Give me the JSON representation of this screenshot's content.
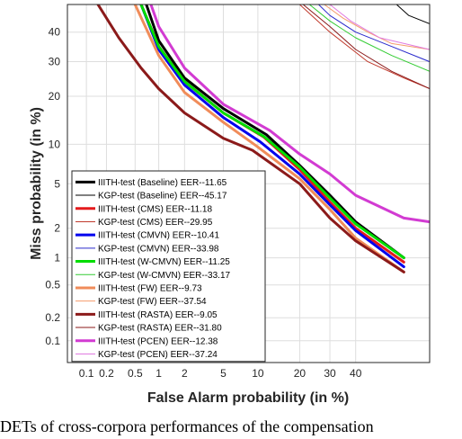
{
  "chart_data": {
    "type": "line",
    "xlabel": "False Alarm probability (in %)",
    "ylabel": "Miss probability (in %)",
    "xscale": "probit",
    "yscale": "probit",
    "xlim": [
      0.05,
      70
    ],
    "ylim": [
      0.05,
      50
    ],
    "xticks": [
      0.1,
      0.2,
      0.5,
      1,
      2,
      5,
      10,
      20,
      30,
      40
    ],
    "xtick_labels": [
      "0.1",
      "0.2",
      "0.5",
      "1",
      "2",
      "5",
      "10",
      "20",
      "30",
      "40"
    ],
    "yticks": [
      0.1,
      0.2,
      0.5,
      1,
      2,
      5,
      10,
      20,
      30,
      40
    ],
    "ytick_labels": [
      "0.1",
      "0.2",
      "0.5",
      "1",
      "2",
      "5",
      "10",
      "20",
      "30",
      "40"
    ],
    "grid": true,
    "legend_position": "bottom-left",
    "series": [
      {
        "name": "IIITH-test (Baseline) EER--11.65",
        "color": "#000000",
        "width": 3,
        "points": [
          [
            0.7,
            50
          ],
          [
            1,
            37
          ],
          [
            2,
            25
          ],
          [
            5,
            17
          ],
          [
            11.65,
            11.65
          ],
          [
            20,
            7
          ],
          [
            30,
            4
          ],
          [
            40,
            2.3
          ],
          [
            60,
            1
          ]
        ]
      },
      {
        "name": "KGP-test (Baseline) EER--45.17",
        "color": "#000000",
        "width": 1,
        "points": [
          [
            57,
            50
          ],
          [
            62,
            46
          ],
          [
            70,
            43
          ]
        ]
      },
      {
        "name": "IIITH-test (CMS) EER--11.18",
        "color": "#e41a1c",
        "width": 3,
        "points": [
          [
            0.6,
            50
          ],
          [
            1,
            35
          ],
          [
            2,
            24
          ],
          [
            5,
            16
          ],
          [
            11.18,
            11.18
          ],
          [
            20,
            6.5
          ],
          [
            30,
            3.5
          ],
          [
            40,
            2
          ],
          [
            60,
            0.9
          ]
        ]
      },
      {
        "name": "KGP-test (CMS) EER--29.95",
        "color": "#c0392b",
        "width": 1,
        "points": [
          [
            20,
            50
          ],
          [
            30,
            40
          ],
          [
            45,
            30
          ],
          [
            60,
            25
          ],
          [
            70,
            22
          ]
        ]
      },
      {
        "name": "IIITH-test (CMVN) EER--10.41",
        "color": "#0000ee",
        "width": 3,
        "points": [
          [
            0.6,
            50
          ],
          [
            1,
            34
          ],
          [
            2,
            23
          ],
          [
            5,
            15
          ],
          [
            10.41,
            10.41
          ],
          [
            20,
            6
          ],
          [
            30,
            3.3
          ],
          [
            40,
            1.9
          ],
          [
            60,
            0.8
          ]
        ]
      },
      {
        "name": "KGP-test (CMVN) EER--33.98",
        "color": "#2a2acc",
        "width": 1,
        "points": [
          [
            26,
            50
          ],
          [
            30,
            46
          ],
          [
            40,
            40
          ],
          [
            55,
            35
          ],
          [
            70,
            30
          ]
        ]
      },
      {
        "name": "IIITH-test (W-CMVN) EER--11.25",
        "color": "#00dd00",
        "width": 3,
        "points": [
          [
            0.6,
            50
          ],
          [
            1,
            35
          ],
          [
            2,
            24
          ],
          [
            5,
            16
          ],
          [
            11.25,
            11.25
          ],
          [
            20,
            6.8
          ],
          [
            30,
            3.8
          ],
          [
            40,
            2.2
          ],
          [
            60,
            1
          ]
        ]
      },
      {
        "name": "KGP-test (W-CMVN) EER--33.17",
        "color": "#33cc33",
        "width": 1,
        "points": [
          [
            23,
            50
          ],
          [
            30,
            44
          ],
          [
            40,
            38
          ],
          [
            55,
            32
          ],
          [
            70,
            27
          ]
        ]
      },
      {
        "name": "IIITH-test (FW) EER--9.73",
        "color": "#f08c5a",
        "width": 3,
        "points": [
          [
            0.5,
            50
          ],
          [
            1,
            32
          ],
          [
            2,
            21
          ],
          [
            5,
            14
          ],
          [
            9.73,
            9.73
          ],
          [
            20,
            5.5
          ],
          [
            30,
            3
          ],
          [
            40,
            1.6
          ],
          [
            60,
            0.7
          ]
        ]
      },
      {
        "name": "KGP-test (FW) EER--37.54",
        "color": "#f59c6c",
        "width": 1,
        "points": [
          [
            28,
            50
          ],
          [
            35,
            45
          ],
          [
            45,
            40
          ],
          [
            55,
            36
          ],
          [
            70,
            34
          ]
        ]
      },
      {
        "name": "IIITH-test (RASTA) EER--9.05",
        "color": "#8b1a1a",
        "width": 3,
        "points": [
          [
            0.15,
            50
          ],
          [
            0.3,
            38
          ],
          [
            0.6,
            28
          ],
          [
            1,
            22
          ],
          [
            2,
            16
          ],
          [
            5,
            11
          ],
          [
            9.05,
            9.05
          ],
          [
            20,
            5
          ],
          [
            30,
            2.5
          ],
          [
            40,
            1.5
          ],
          [
            60,
            0.7
          ]
        ]
      },
      {
        "name": "KGP-test (RASTA) EER--31.80",
        "color": "#8b1a1a",
        "width": 1,
        "points": [
          [
            21,
            50
          ],
          [
            30,
            42
          ],
          [
            40,
            34
          ],
          [
            55,
            27
          ],
          [
            70,
            22
          ]
        ]
      },
      {
        "name": "IIITH-test (PCEN) EER--12.38",
        "color": "#d23bd2",
        "width": 3,
        "points": [
          [
            0.8,
            50
          ],
          [
            1,
            42
          ],
          [
            2,
            28
          ],
          [
            5,
            18
          ],
          [
            12.38,
            12.38
          ],
          [
            20,
            8.5
          ],
          [
            30,
            6
          ],
          [
            40,
            4
          ],
          [
            60,
            2.5
          ],
          [
            70,
            2.3
          ]
        ]
      },
      {
        "name": "KGP-test (PCEN) EER--37.24",
        "color": "#e07ae0",
        "width": 1,
        "points": [
          [
            30,
            50
          ],
          [
            38,
            44
          ],
          [
            50,
            38
          ],
          [
            70,
            34
          ]
        ]
      }
    ]
  },
  "caption": "DETs of cross-corpora performances of the compensation"
}
